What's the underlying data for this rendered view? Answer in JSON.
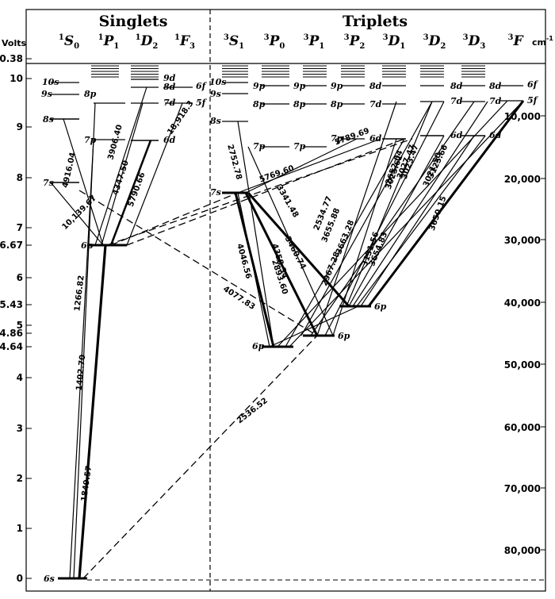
{
  "headers": {
    "singlets": "Singlets",
    "triplets": "Triplets"
  },
  "axes": {
    "left_label": "Volts",
    "right_label": "cm",
    "right_label_sup": "-1",
    "left_ticks": [
      "10.38",
      "10",
      "9",
      "8",
      "7",
      "6.67",
      "6",
      "5.43",
      "5",
      "4.86",
      "4.64",
      "4",
      "3",
      "2",
      "1",
      "0"
    ],
    "right_ticks": [
      "10,000",
      "20,000",
      "30,000",
      "40,000",
      "50,000",
      "60,000",
      "70,000",
      "80,000"
    ]
  },
  "columns": [
    {
      "id": "1S0",
      "sup": "1",
      "letter": "S",
      "sub": "0"
    },
    {
      "id": "1P1",
      "sup": "1",
      "letter": "P",
      "sub": "1"
    },
    {
      "id": "1D2",
      "sup": "1",
      "letter": "D",
      "sub": "2"
    },
    {
      "id": "1F3",
      "sup": "1",
      "letter": "F",
      "sub": "3"
    },
    {
      "id": "3S1",
      "sup": "3",
      "letter": "S",
      "sub": "1"
    },
    {
      "id": "3P0",
      "sup": "3",
      "letter": "P",
      "sub": "0"
    },
    {
      "id": "3P1",
      "sup": "3",
      "letter": "P",
      "sub": "1"
    },
    {
      "id": "3P2",
      "sup": "3",
      "letter": "P",
      "sub": "2"
    },
    {
      "id": "3D1",
      "sup": "3",
      "letter": "D",
      "sub": "1"
    },
    {
      "id": "3D2",
      "sup": "3",
      "letter": "D",
      "sub": "2"
    },
    {
      "id": "3D3",
      "sup": "3",
      "letter": "D",
      "sub": "3"
    },
    {
      "id": "3F",
      "sup": "3",
      "letter": "F",
      "sub": ""
    }
  ],
  "level_labels": [
    {
      "id": "6s",
      "text": "6s"
    },
    {
      "id": "7s",
      "text": "7s"
    },
    {
      "id": "8s",
      "text": "8s"
    },
    {
      "id": "9s",
      "text": "9s"
    },
    {
      "id": "10s",
      "text": "10s"
    },
    {
      "id": "1P_6p",
      "text": "6p"
    },
    {
      "id": "1P_7p",
      "text": "7p"
    },
    {
      "id": "1P_8p",
      "text": "8p"
    },
    {
      "id": "1D_6d",
      "text": "6d"
    },
    {
      "id": "1D_7d",
      "text": "7d"
    },
    {
      "id": "1D_8d",
      "text": "8d"
    },
    {
      "id": "1D_9d",
      "text": "9d"
    },
    {
      "id": "1F_5f",
      "text": "5f"
    },
    {
      "id": "1F_6f",
      "text": "6f"
    },
    {
      "id": "3S_8s",
      "text": "8s"
    },
    {
      "id": "3S_9s",
      "text": "9s"
    },
    {
      "id": "3S_10s",
      "text": "10s"
    },
    {
      "id": "3S_7s",
      "text": "7s"
    },
    {
      "id": "3P0_6p",
      "text": "6p"
    },
    {
      "id": "3P0_7p",
      "text": "7p"
    },
    {
      "id": "3P0_8p",
      "text": "8p"
    },
    {
      "id": "3P0_9p",
      "text": "9p"
    },
    {
      "id": "3P1_6p",
      "text": "6p"
    },
    {
      "id": "3P1_7p",
      "text": "7p"
    },
    {
      "id": "3P1_8p",
      "text": "8p"
    },
    {
      "id": "3P1_9p",
      "text": "9p"
    },
    {
      "id": "3P2_6p",
      "text": "6p"
    },
    {
      "id": "3P2_7p",
      "text": "7p"
    },
    {
      "id": "3P2_8p",
      "text": "8p"
    },
    {
      "id": "3P2_9p",
      "text": "9p"
    },
    {
      "id": "3D_6d",
      "text": "6d"
    },
    {
      "id": "3D_7d",
      "text": "7d"
    },
    {
      "id": "3D_8d",
      "text": "8d"
    },
    {
      "id": "3D2_6d",
      "text": "6d"
    },
    {
      "id": "3D2_7d",
      "text": "7d"
    },
    {
      "id": "3D2_8d",
      "text": "8d"
    },
    {
      "id": "3D3_6d",
      "text": "6d"
    },
    {
      "id": "3D3_7d",
      "text": "7d"
    },
    {
      "id": "3D3_8d",
      "text": "8d"
    },
    {
      "id": "3F_5f",
      "text": "5f"
    },
    {
      "id": "3F_6f",
      "text": "6f"
    }
  ],
  "transitions": [
    "1849.57",
    "1402.70",
    "1266.82",
    "4916.04",
    "10,139.67",
    "3906.40",
    "4347.50",
    "5790.66",
    "18,918.3",
    "2536.52",
    "4077.83",
    "5769.60",
    "5789.69",
    "2752.78",
    "3341.48",
    "4046.56",
    "4358.34",
    "5460.74",
    "2893.60",
    "3650.15",
    "3021.50",
    "3125.66",
    "3131.56",
    "2534.77",
    "2967.28",
    "3655.88",
    "3663.28",
    "3654.83",
    "3025.61",
    "3027.47",
    "2652.04",
    "3023.47"
  ]
}
